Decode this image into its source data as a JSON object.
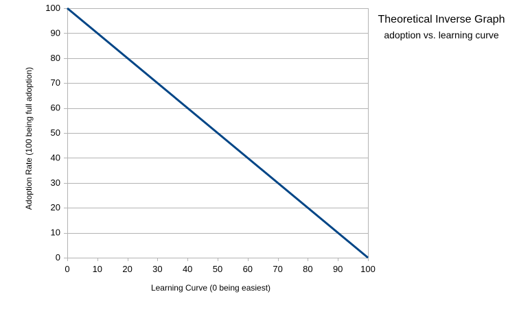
{
  "chart_data": {
    "type": "line",
    "title": "Theoretical Inverse Graph",
    "subtitle": "adoption vs. learning curve",
    "xlabel": "Learning Curve (0 being easiest)",
    "ylabel": "Adoption Rate (100 being full adoption)",
    "xlim": [
      0,
      100
    ],
    "ylim": [
      0,
      100
    ],
    "xticks": [
      0,
      10,
      20,
      30,
      40,
      50,
      60,
      70,
      80,
      90,
      100
    ],
    "yticks": [
      0,
      10,
      20,
      30,
      40,
      50,
      60,
      70,
      80,
      90,
      100
    ],
    "grid": true,
    "legend": "none",
    "series": [
      {
        "x": [
          0,
          100
        ],
        "y": [
          100,
          0
        ],
        "color": "#004586"
      }
    ],
    "colors": {
      "grid": "#b3b3b3",
      "axis": "#b3b3b3",
      "line": "#004586"
    }
  }
}
